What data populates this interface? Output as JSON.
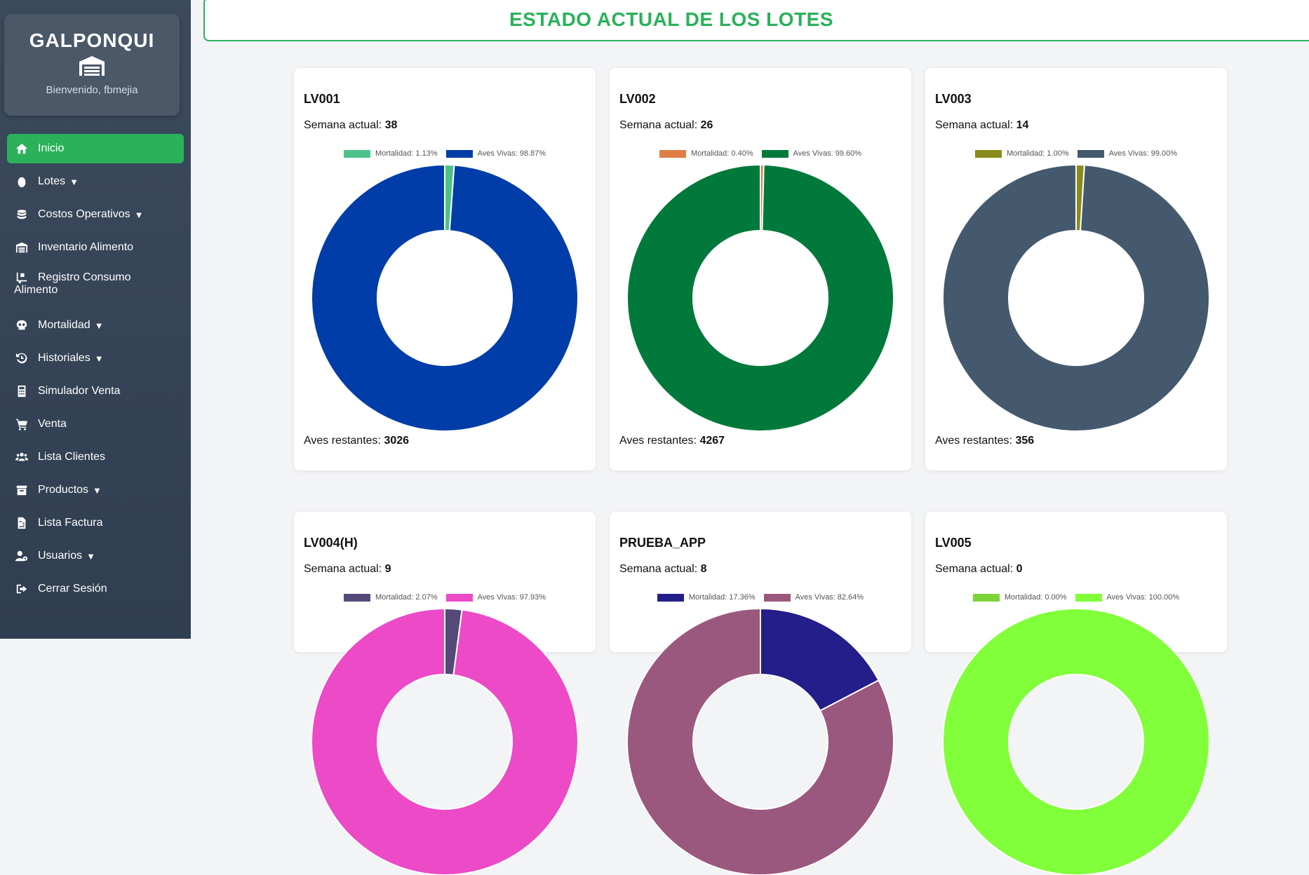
{
  "sidebar": {
    "app_name": "GALPONQUI",
    "welcome": "Bienvenido, fbmejia",
    "items": [
      {
        "label": "Inicio",
        "icon": "home-icon",
        "caret": "",
        "active": true
      },
      {
        "label": "Lotes",
        "icon": "egg-icon",
        "caret": "▼"
      },
      {
        "label": "Costos Operativos",
        "icon": "coins-icon",
        "caret": "▼"
      },
      {
        "label": "Inventario Alimento",
        "icon": "warehouse-icon",
        "caret": ""
      },
      {
        "label": "Registro Consumo",
        "label2": "Alimento",
        "icon": "truck-loading-icon",
        "caret": ""
      },
      {
        "label": "Mortalidad",
        "icon": "skull-icon",
        "caret": "▼"
      },
      {
        "label": "Historiales",
        "icon": "history-icon",
        "caret": "▼"
      },
      {
        "label": "Simulador Venta",
        "icon": "calculator-icon",
        "caret": ""
      },
      {
        "label": "Venta",
        "icon": "cart-icon",
        "caret": ""
      },
      {
        "label": "Lista Clientes",
        "icon": "users-icon",
        "caret": ""
      },
      {
        "label": "Productos",
        "icon": "box-icon",
        "caret": "▼"
      },
      {
        "label": "Lista Factura",
        "icon": "invoice-icon",
        "caret": ""
      },
      {
        "label": "Usuarios",
        "icon": "user-cog-icon",
        "caret": "▼"
      },
      {
        "label": "Cerrar Sesión",
        "icon": "sign-out-icon",
        "caret": ""
      }
    ]
  },
  "page": {
    "title": "ESTADO ACTUAL DE LOS LOTES",
    "week_label": "Semana actual:",
    "remaining_label": "Aves restantes:"
  },
  "lots": [
    {
      "name": "LV001",
      "week": "38",
      "remaining": "3026",
      "legend_mort": "Mortalidad: 1.13%",
      "legend_live": "Aves Vivas: 98.87%",
      "mortality_pct": 1.13,
      "live_pct": 98.87,
      "color_mort": "#4cc28a",
      "color_live": "#003da8"
    },
    {
      "name": "LV002",
      "week": "26",
      "remaining": "4267",
      "legend_mort": "Mortalidad: 0.40%",
      "legend_live": "Aves Vivas: 99.60%",
      "mortality_pct": 0.4,
      "live_pct": 99.6,
      "color_mort": "#e07d45",
      "color_live": "#00793b"
    },
    {
      "name": "LV003",
      "week": "14",
      "remaining": "356",
      "legend_mort": "Mortalidad: 1.00%",
      "legend_live": "Aves Vivas: 99.00%",
      "mortality_pct": 1.0,
      "live_pct": 99.0,
      "color_mort": "#8a8a1b",
      "color_live": "#44596d"
    },
    {
      "name": "LV004(H)",
      "week": "9",
      "remaining": "",
      "legend_mort": "Mortalidad: 2.07%",
      "legend_live": "Aves Vivas: 97.93%",
      "mortality_pct": 2.07,
      "live_pct": 97.93,
      "color_mort": "#55497a",
      "color_live": "#ec4ac7"
    },
    {
      "name": "PRUEBA_APP",
      "week": "8",
      "remaining": "",
      "legend_mort": "Mortalidad: 17.36%",
      "legend_live": "Aves Vivas: 82.64%",
      "mortality_pct": 17.36,
      "live_pct": 82.64,
      "color_mort": "#241e8a",
      "color_live": "#9b587e"
    },
    {
      "name": "LV005",
      "week": "0",
      "remaining": "",
      "legend_mort": "Mortalidad: 0.00%",
      "legend_live": "Aves Vivas: 100.00%",
      "mortality_pct": 0.0,
      "live_pct": 100.0,
      "color_mort": "#7cd43a",
      "color_live": "#80ff3a"
    }
  ],
  "chart_data": [
    {
      "type": "pie",
      "title": "",
      "categories": [
        "Mortalidad",
        "Aves Vivas"
      ],
      "values": [
        1.13,
        98.87
      ]
    },
    {
      "type": "pie",
      "title": "",
      "categories": [
        "Mortalidad",
        "Aves Vivas"
      ],
      "values": [
        0.4,
        99.6
      ]
    },
    {
      "type": "pie",
      "title": "",
      "categories": [
        "Mortalidad",
        "Aves Vivas"
      ],
      "values": [
        1.0,
        99.0
      ]
    },
    {
      "type": "pie",
      "title": "",
      "categories": [
        "Mortalidad",
        "Aves Vivas"
      ],
      "values": [
        2.07,
        97.93
      ]
    },
    {
      "type": "pie",
      "title": "",
      "categories": [
        "Mortalidad",
        "Aves Vivas"
      ],
      "values": [
        17.36,
        82.64
      ]
    },
    {
      "type": "pie",
      "title": "",
      "categories": [
        "Mortalidad",
        "Aves Vivas"
      ],
      "values": [
        0.0,
        100.0
      ]
    }
  ]
}
